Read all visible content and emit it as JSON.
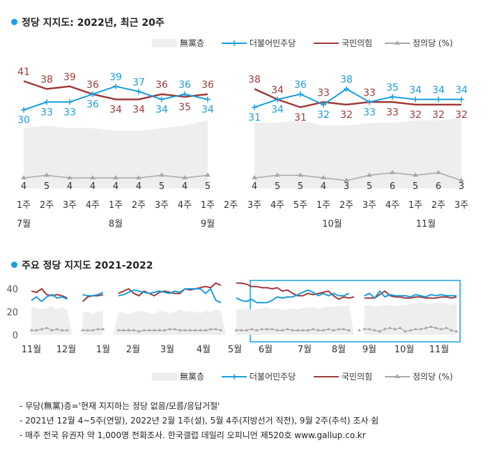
{
  "chart_data": [
    {
      "type": "line",
      "title": "정당 지지도: 2022년, 최근 20주",
      "legend": [
        "無黨층",
        "더불어민주당",
        "국민의힘",
        "정의당 (%)"
      ],
      "legend_position": "top-right",
      "week_labels": [
        "1주",
        "2주",
        "3주",
        "4주",
        "1주",
        "2주",
        "3주",
        "4주",
        "1주",
        "2주",
        "3주",
        "4주",
        "5주",
        "1주",
        "2주",
        "3주",
        "4주",
        "1주",
        "2주",
        "3주"
      ],
      "month_labels": [
        "7월",
        "8월",
        "9월",
        "10월",
        "11월"
      ],
      "segments": [
        [
          0,
          8
        ],
        [
          10,
          19
        ]
      ],
      "ylim": [
        0,
        50
      ],
      "series": [
        {
          "name": "더불어민주당",
          "color": "#1a9de0",
          "values": [
            30,
            33,
            33,
            36,
            39,
            37,
            34,
            36,
            34,
            null,
            31,
            34,
            36,
            32,
            38,
            33,
            35,
            34,
            34,
            34
          ]
        },
        {
          "name": "국민의힘",
          "color": "#9e3a3a",
          "values": [
            41,
            38,
            39,
            36,
            34,
            34,
            36,
            35,
            36,
            null,
            38,
            34,
            31,
            33,
            32,
            33,
            33,
            32,
            32,
            32
          ]
        },
        {
          "name": "정의당",
          "color": "#a8a8a8",
          "values": [
            4,
            5,
            4,
            4,
            4,
            4,
            5,
            4,
            5,
            null,
            4,
            5,
            5,
            4,
            3,
            5,
            6,
            5,
            6,
            3
          ]
        },
        {
          "name": "無黨층",
          "color": "#eeeeee",
          "values": [
            23,
            24,
            23,
            23,
            22,
            22,
            23,
            24,
            26,
            null,
            25,
            25,
            26,
            24,
            24,
            25,
            25,
            26,
            26,
            27
          ]
        }
      ]
    },
    {
      "type": "line",
      "title": "주요 정당 지지도 2021-2022",
      "legend": [
        "無黨층",
        "더불어민주당",
        "국민의힘",
        "정의당 (%)"
      ],
      "legend_position": "bottom-right",
      "y_ticks": [
        0,
        20,
        40
      ],
      "ylim": [
        0,
        45
      ],
      "month_labels": [
        "11월",
        "12월",
        "1월",
        "2월",
        "3월",
        "4월",
        "5월",
        "6월",
        "7월",
        "8월",
        "9월",
        "10월",
        "11월"
      ],
      "segments": [
        [
          0,
          8
        ],
        [
          10,
          14
        ],
        [
          16,
          38
        ],
        [
          40,
          63
        ],
        [
          65,
          83
        ]
      ],
      "series": [
        {
          "name": "더불어민주당",
          "color": "#1a9de0",
          "values": [
            30,
            33,
            29,
            33,
            35,
            32,
            33,
            31,
            null,
            null,
            35,
            34,
            34,
            35,
            37,
            null,
            null,
            34,
            35,
            37,
            39,
            38,
            37,
            36,
            37,
            38,
            37,
            36,
            38,
            37,
            40,
            40,
            40,
            40,
            36,
            40,
            30,
            28,
            null,
            null,
            32,
            30,
            29,
            31,
            28,
            28,
            28,
            30,
            33,
            32,
            33,
            33,
            35,
            37,
            39,
            37,
            34,
            36,
            34,
            36,
            34,
            34,
            36,
            null,
            31,
            34,
            36,
            32,
            38,
            33,
            35,
            34,
            34,
            34,
            33,
            35,
            34,
            33,
            35,
            34,
            35,
            34,
            34,
            34
          ]
        },
        {
          "name": "국민의힘",
          "color": "#9e3a3a",
          "values": [
            38,
            37,
            40,
            35,
            34,
            35,
            34,
            32,
            null,
            null,
            29,
            33,
            34,
            34,
            35,
            null,
            null,
            36,
            38,
            40,
            36,
            34,
            38,
            36,
            34,
            37,
            38,
            37,
            36,
            36,
            40,
            39,
            40,
            41,
            42,
            41,
            45,
            43,
            null,
            null,
            45,
            45,
            44,
            42,
            42,
            41,
            41,
            40,
            41,
            38,
            39,
            36,
            34,
            34,
            36,
            35,
            36,
            null,
            38,
            34,
            31,
            33,
            32,
            33,
            33,
            32,
            32,
            32,
            null,
            38,
            34,
            33,
            33,
            32,
            32,
            33,
            33,
            32,
            32,
            32,
            33,
            33,
            32,
            33
          ]
        },
        {
          "name": "정의당",
          "color": "#a8a8a8",
          "values": [
            4,
            4,
            5,
            6,
            4,
            5,
            4,
            4,
            null,
            null,
            4,
            4,
            4,
            5,
            5,
            null,
            null,
            4,
            4,
            4,
            4,
            3,
            4,
            4,
            4,
            4,
            4,
            5,
            5,
            4,
            4,
            4,
            4,
            4,
            4,
            5,
            5,
            4,
            null,
            null,
            4,
            4,
            4,
            5,
            4,
            5,
            5,
            5,
            4,
            4,
            5,
            4,
            4,
            4,
            4,
            5,
            4,
            4,
            5,
            4,
            5,
            5,
            4,
            null,
            4,
            5,
            5,
            4,
            3,
            5,
            6,
            5,
            6,
            3,
            4,
            5,
            5,
            6,
            7,
            6,
            5,
            6,
            4,
            3
          ]
        },
        {
          "name": "無黨층",
          "color": "#eeeeee",
          "values": [
            24,
            23,
            22,
            23,
            25,
            22,
            24,
            22,
            null,
            null,
            19,
            20,
            18,
            20,
            21,
            null,
            null,
            20,
            19,
            18,
            20,
            21,
            20,
            19,
            18,
            21,
            20,
            19,
            20,
            22,
            20,
            21,
            20,
            19,
            21,
            20,
            22,
            21,
            null,
            null,
            22,
            22,
            23,
            22,
            22,
            23,
            24,
            22,
            23,
            22,
            22,
            23,
            22,
            23,
            24,
            24,
            23,
            24,
            25,
            24,
            25,
            25,
            26,
            null,
            24,
            25,
            26,
            25,
            25,
            26,
            26,
            25,
            26,
            26,
            27,
            27,
            28,
            27,
            27,
            28,
            28,
            27,
            26,
            28
          ]
        }
      ]
    }
  ],
  "notes": [
    "- 무당(無黨)층='현재 지지하는 정당 없음/모름/응답거절'",
    "- 2021년 12월 4~5주(연말), 2022년 2월 1주(설), 5월 4주(지방선거 직전), 9월 2주(추석) 조사 쉼",
    "- 매주 전국 유권자 약 1,000명 전화조사. 한국갤럽 데일리 오피니언 제520호 www.gallup.co.kr"
  ]
}
